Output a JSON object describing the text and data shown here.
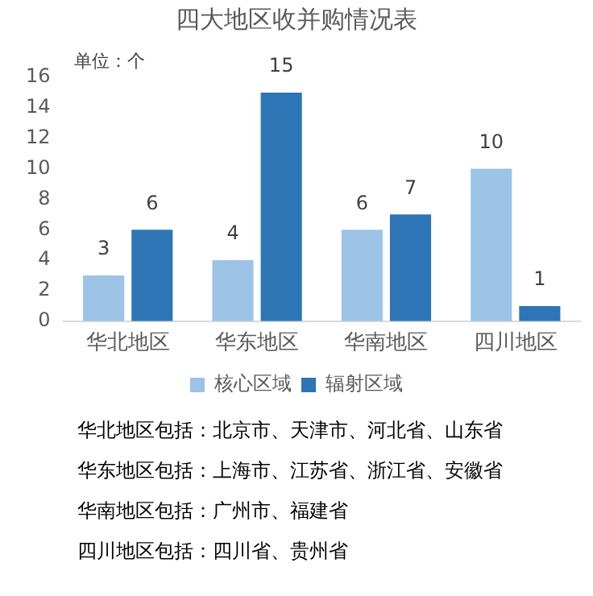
{
  "chart_data": {
    "type": "bar",
    "title": "四大地区收并购情况表",
    "ylabel": "单位：个",
    "categories": [
      "华北地区",
      "华东地区",
      "华南地区",
      "四川地区"
    ],
    "series": [
      {
        "name": "核心区域",
        "color": "#9dc3e6",
        "values": [
          3,
          4,
          6,
          10
        ]
      },
      {
        "name": "辐射区域",
        "color": "#2e75b6",
        "values": [
          6,
          15,
          7,
          1
        ]
      }
    ],
    "ylim": [
      0,
      16
    ],
    "yticks": [
      0,
      2,
      4,
      6,
      8,
      10,
      12,
      14,
      16
    ],
    "grid": false,
    "data_labels": true,
    "legend": "bottom",
    "annotations": [
      "华北地区包括：北京市、天津市、河北省、山东省",
      "华东地区包括：上海市、江苏省、浙江省、安徽省",
      "华南地区包括：广州市、福建省",
      "四川地区包括：四川省、贵州省"
    ]
  }
}
